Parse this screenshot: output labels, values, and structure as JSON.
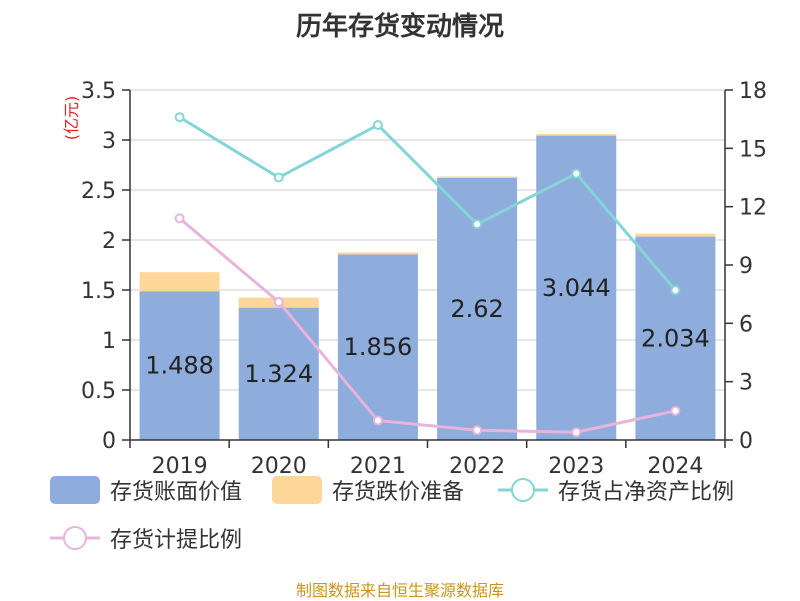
{
  "title": "历年存货变动情况",
  "source_note": "制图数据来自恒生聚源数据库",
  "colors": {
    "bar_value": "#8eacdc",
    "bar_reserve": "#fdd699",
    "line_ratio": "#84d5d5",
    "line_provision": "#e7b5dc",
    "unit_label": "#e02020"
  },
  "chart_data": {
    "type": "bar",
    "title": "历年存货变动情况",
    "categories": [
      "2019",
      "2020",
      "2021",
      "2022",
      "2023",
      "2024"
    ],
    "left_axis": {
      "unit": "(亿元)",
      "ylim": [
        0,
        3.5
      ],
      "ticks": [
        "0",
        "0.5",
        "1",
        "1.5",
        "2",
        "2.5",
        "3",
        "3.5"
      ]
    },
    "right_axis": {
      "ylim": [
        0,
        18
      ],
      "ticks": [
        "0",
        "3",
        "6",
        "9",
        "12",
        "15",
        "18"
      ]
    },
    "grid": true,
    "legend_position": "bottom",
    "series": [
      {
        "name": "存货账面价值",
        "kind": "bar",
        "stack": "inventory",
        "axis": "left",
        "values": [
          1.488,
          1.324,
          1.856,
          2.62,
          3.044,
          2.034
        ],
        "labels": [
          "1.488",
          "1.324",
          "1.856",
          "2.62",
          "3.044",
          "2.034"
        ]
      },
      {
        "name": "存货跌价准备",
        "kind": "bar",
        "stack": "inventory",
        "axis": "left",
        "values": [
          0.19,
          0.1,
          0.02,
          0.015,
          0.015,
          0.03
        ]
      },
      {
        "name": "存货占净资产比例",
        "kind": "line",
        "axis": "right",
        "values": [
          16.6,
          13.5,
          16.2,
          11.1,
          13.7,
          7.7
        ]
      },
      {
        "name": "存货计提比例",
        "kind": "line",
        "axis": "right",
        "values": [
          11.4,
          7.1,
          1.0,
          0.5,
          0.4,
          1.5
        ]
      }
    ]
  }
}
